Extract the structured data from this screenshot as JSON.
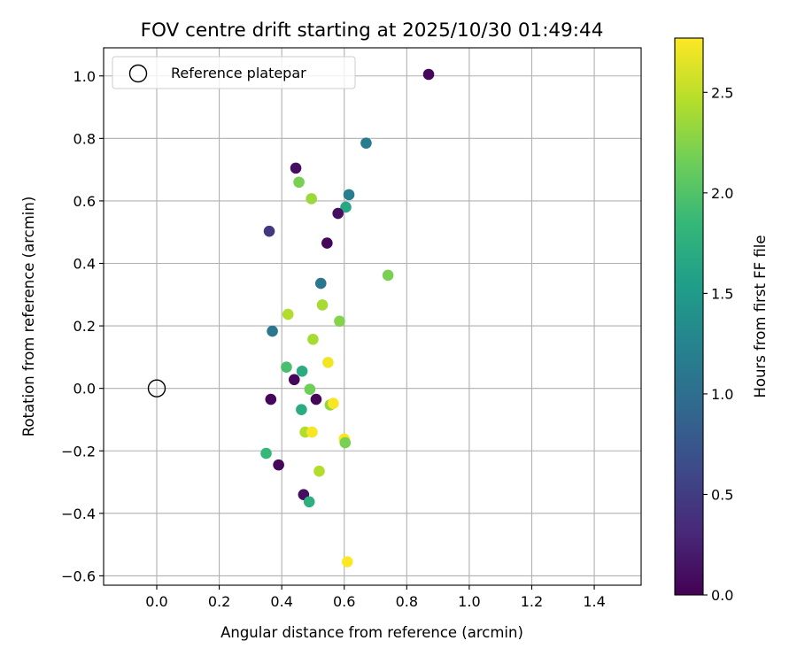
{
  "chart_data": {
    "type": "scatter",
    "title": "FOV centre drift starting at 2025/10/30 01:49:44",
    "xlabel": "Angular distance from reference (arcmin)",
    "ylabel": "Rotation from reference (arcmin)",
    "xlim": [
      -0.17,
      1.55
    ],
    "ylim": [
      -0.63,
      1.09
    ],
    "xticks": [
      0.0,
      0.2,
      0.4,
      0.6,
      0.8,
      1.0,
      1.2,
      1.4
    ],
    "xtick_labels": [
      "0.0",
      "0.2",
      "0.4",
      "0.6",
      "0.8",
      "1.0",
      "1.2",
      "1.4"
    ],
    "yticks": [
      -0.6,
      -0.4,
      -0.2,
      0.0,
      0.2,
      0.4,
      0.6,
      0.8,
      1.0
    ],
    "ytick_labels": [
      "−0.6",
      "−0.4",
      "−0.2",
      "0.0",
      "0.2",
      "0.4",
      "0.6",
      "0.8",
      "1.0"
    ],
    "grid": true,
    "legend": {
      "position": "top-left",
      "entries": [
        {
          "label": "Reference platepar",
          "marker": "open-circle"
        }
      ]
    },
    "reference_point": {
      "x": 0.0,
      "y": 0.0
    },
    "colorbar": {
      "label": "Hours from first FF file",
      "range": [
        0.0,
        2.77
      ],
      "ticks": [
        0.0,
        0.5,
        1.0,
        1.5,
        2.0,
        2.5
      ],
      "tick_labels": [
        "0.0",
        "0.5",
        "1.0",
        "1.5",
        "2.0",
        "2.5"
      ],
      "colormap": "viridis",
      "colors": [
        "#440154",
        "#482878",
        "#3e4989",
        "#31688e",
        "#26828e",
        "#1f9e89",
        "#35b779",
        "#6ece58",
        "#b5de2b",
        "#fde725"
      ]
    },
    "points": [
      {
        "x": 0.87,
        "y": 1.005,
        "hours": 0.05
      },
      {
        "x": 0.67,
        "y": 0.785,
        "hours": 1.15
      },
      {
        "x": 0.445,
        "y": 0.705,
        "hours": 0.1
      },
      {
        "x": 0.455,
        "y": 0.66,
        "hours": 2.2
      },
      {
        "x": 0.615,
        "y": 0.62,
        "hours": 1.2
      },
      {
        "x": 0.495,
        "y": 0.607,
        "hours": 2.35
      },
      {
        "x": 0.605,
        "y": 0.58,
        "hours": 1.65
      },
      {
        "x": 0.58,
        "y": 0.56,
        "hours": 0.1
      },
      {
        "x": 0.36,
        "y": 0.503,
        "hours": 0.45
      },
      {
        "x": 0.545,
        "y": 0.465,
        "hours": 0.05
      },
      {
        "x": 0.74,
        "y": 0.362,
        "hours": 2.2
      },
      {
        "x": 0.525,
        "y": 0.336,
        "hours": 1.1
      },
      {
        "x": 0.53,
        "y": 0.267,
        "hours": 2.4
      },
      {
        "x": 0.42,
        "y": 0.237,
        "hours": 2.45
      },
      {
        "x": 0.585,
        "y": 0.215,
        "hours": 2.25
      },
      {
        "x": 0.37,
        "y": 0.183,
        "hours": 1.1
      },
      {
        "x": 0.5,
        "y": 0.157,
        "hours": 2.4
      },
      {
        "x": 0.548,
        "y": 0.083,
        "hours": 2.72
      },
      {
        "x": 0.415,
        "y": 0.068,
        "hours": 1.95
      },
      {
        "x": 0.465,
        "y": 0.055,
        "hours": 1.7
      },
      {
        "x": 0.44,
        "y": 0.028,
        "hours": 0.05
      },
      {
        "x": 0.49,
        "y": -0.003,
        "hours": 2.15
      },
      {
        "x": 0.365,
        "y": -0.035,
        "hours": 0.05
      },
      {
        "x": 0.51,
        "y": -0.035,
        "hours": 0.05
      },
      {
        "x": 0.555,
        "y": -0.053,
        "hours": 2.3
      },
      {
        "x": 0.565,
        "y": -0.048,
        "hours": 2.75
      },
      {
        "x": 0.463,
        "y": -0.068,
        "hours": 1.7
      },
      {
        "x": 0.475,
        "y": -0.14,
        "hours": 2.45
      },
      {
        "x": 0.497,
        "y": -0.14,
        "hours": 2.75
      },
      {
        "x": 0.6,
        "y": -0.162,
        "hours": 2.75
      },
      {
        "x": 0.603,
        "y": -0.174,
        "hours": 2.2
      },
      {
        "x": 0.35,
        "y": -0.208,
        "hours": 1.85
      },
      {
        "x": 0.39,
        "y": -0.245,
        "hours": 0.05
      },
      {
        "x": 0.52,
        "y": -0.265,
        "hours": 2.45
      },
      {
        "x": 0.47,
        "y": -0.34,
        "hours": 0.1
      },
      {
        "x": 0.488,
        "y": -0.363,
        "hours": 1.75
      },
      {
        "x": 0.61,
        "y": -0.555,
        "hours": 2.77
      }
    ]
  }
}
